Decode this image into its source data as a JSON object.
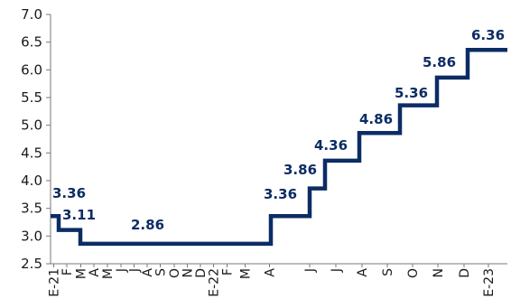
{
  "chart_data": {
    "type": "line",
    "step": true,
    "title": "",
    "xlabel": "",
    "ylabel": "",
    "ylim": [
      2.5,
      7.0
    ],
    "y_ticks": [
      "7.0",
      "6.5",
      "6.0",
      "5.5",
      "5.0",
      "4.5",
      "4.0",
      "3.5",
      "3.0",
      "2.5"
    ],
    "grid": false,
    "legend": "none",
    "line_color": "#0c2c64",
    "label_color": "#0c2c64",
    "x_ticks_monthly": [
      "E-21",
      "F",
      "M",
      "A",
      "M",
      "J",
      "J",
      "A",
      "S",
      "O",
      "N",
      "D",
      "E-22",
      "F",
      "M",
      "A"
    ],
    "x_ticks_weekly": [
      "J",
      "J",
      "A",
      "S",
      "O",
      "N",
      "D",
      "E-23"
    ],
    "series": [
      {
        "values": [
          {
            "x": "2021-01",
            "y": 3.36
          },
          {
            "x": "2021-02",
            "y": 3.11
          },
          {
            "x": "2021-03",
            "y": 2.86
          },
          {
            "x": "2022-04",
            "y": 3.36
          },
          {
            "x": "2022-05",
            "y": 3.86
          },
          {
            "x": "2022-06",
            "y": 4.36
          },
          {
            "x": "2022-07",
            "y": 4.86
          },
          {
            "x": "2022-08",
            "y": 5.36
          },
          {
            "x": "2022-09",
            "y": 5.86
          },
          {
            "x": "2022-10",
            "y": 6.36
          }
        ]
      }
    ],
    "data_labels": [
      "3.36",
      "3.11",
      "2.86",
      "3.36",
      "3.86",
      "4.36",
      "4.86",
      "5.36",
      "5.86",
      "6.36"
    ]
  }
}
